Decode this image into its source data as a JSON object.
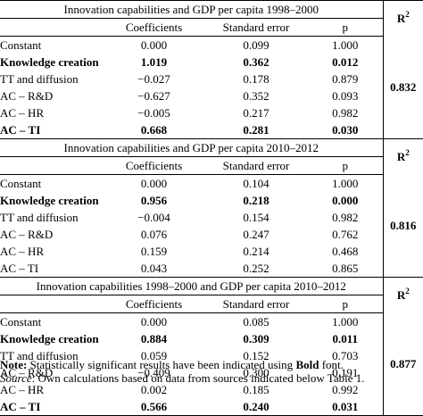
{
  "headers": {
    "coefficients": "Coefficients",
    "standard_error": "Standard error",
    "p": "p",
    "r2": "R",
    "r2_sup": "2"
  },
  "sections": [
    {
      "title": "Innovation capabilities and GDP per capita 1998–2000",
      "r2": "0.832",
      "rows": [
        {
          "label": "Constant",
          "coef": "0.000",
          "se": "0.099",
          "p": "1.000",
          "bold": false
        },
        {
          "label": "Knowledge creation",
          "coef": "1.019",
          "se": "0.362",
          "p": "0.012",
          "bold": true
        },
        {
          "label": "TT and diffusion",
          "coef": "−0.027",
          "se": "0.178",
          "p": "0.879",
          "bold": false
        },
        {
          "label": "AC – R&D",
          "coef": "−0.627",
          "se": "0.352",
          "p": "0.093",
          "bold": false
        },
        {
          "label": "AC – HR",
          "coef": "−0.005",
          "se": "0.217",
          "p": "0.982",
          "bold": false
        },
        {
          "label": "AC – TI",
          "coef": "0.668",
          "se": "0.281",
          "p": "0.030",
          "bold": true
        }
      ]
    },
    {
      "title": "Innovation capabilities and GDP per capita 2010–2012",
      "r2": "0.816",
      "rows": [
        {
          "label": "Constant",
          "coef": "0.000",
          "se": "0.104",
          "p": "1.000",
          "bold": false
        },
        {
          "label": "Knowledge creation",
          "coef": "0.956",
          "se": "0.218",
          "p": "0.000",
          "bold": true
        },
        {
          "label": "TT and diffusion",
          "coef": "−0.004",
          "se": "0.154",
          "p": "0.982",
          "bold": false
        },
        {
          "label": "AC – R&D",
          "coef": "0.076",
          "se": "0.247",
          "p": "0.762",
          "bold": false
        },
        {
          "label": "AC – HR",
          "coef": "0.159",
          "se": "0.214",
          "p": "0.468",
          "bold": false
        },
        {
          "label": "AC – TI",
          "coef": "0.043",
          "se": "0.252",
          "p": "0.865",
          "bold": false
        }
      ]
    },
    {
      "title": "Innovation capabilities 1998–2000 and GDP per capita 2010–2012",
      "r2": "0.877",
      "rows": [
        {
          "label": "Constant",
          "coef": "0.000",
          "se": "0.085",
          "p": "1.000",
          "bold": false
        },
        {
          "label": "Knowledge creation",
          "coef": "0.884",
          "se": "0.309",
          "p": "0.011",
          "bold": true
        },
        {
          "label": "TT and diffusion",
          "coef": "0.059",
          "se": "0.152",
          "p": "0.703",
          "bold": false
        },
        {
          "label": "AC – R&D",
          "coef": "−0.409",
          "se": "0.300",
          "p": "0.191",
          "bold": false
        },
        {
          "label": "AC – HR",
          "coef": "0.002",
          "se": "0.185",
          "p": "0.992",
          "bold": false
        },
        {
          "label": "AC – TI",
          "coef": "0.566",
          "se": "0.240",
          "p": "0.031",
          "bold": true
        }
      ]
    }
  ],
  "notes": {
    "note_label": "Note:",
    "note_text": " Statistically significant results have been indicated using ",
    "note_bold": "Bold",
    "note_end": " font.",
    "source_label": "Source",
    "source_text": ": Own calculations based on data from sources indicated below Table 1."
  }
}
